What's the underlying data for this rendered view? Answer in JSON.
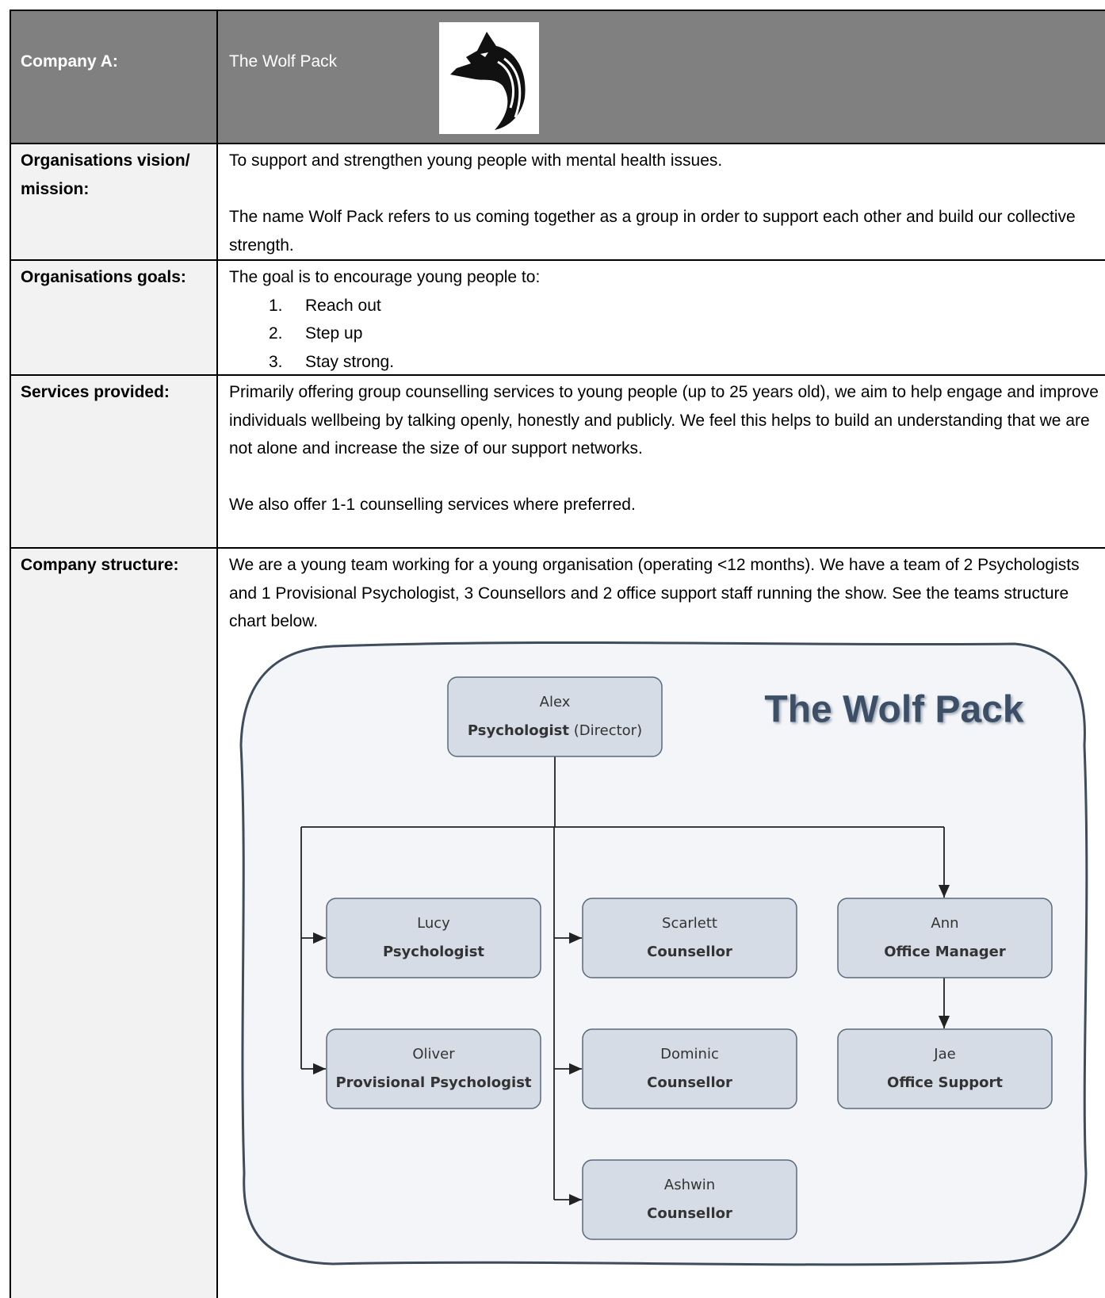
{
  "header": {
    "label": "Company A:",
    "name": "The Wolf Pack"
  },
  "rows": [
    {
      "label": "Organisations vision/ mission:",
      "paragraphs": [
        "To support and strengthen young people with mental health issues.",
        "The name Wolf Pack refers to us coming together as a group in order to support each other and build our collective strength."
      ]
    },
    {
      "label": "Organisations goals:",
      "intro": "The goal is to encourage young people to:",
      "items": [
        {
          "number": "1.",
          "text": "Reach out"
        },
        {
          "number": "2.",
          "text": "Step up"
        },
        {
          "number": "3.",
          "text": "Stay strong."
        }
      ]
    },
    {
      "label": "Services provided:",
      "paragraphs": [
        "Primarily offering group counselling services to young people (up to 25 years old), we aim to help engage and improve individuals wellbeing by talking openly, honestly and publicly. We feel this helps to build an understanding that we are not alone and increase the size of our support networks.",
        "We also offer 1-1 counselling services where preferred."
      ]
    },
    {
      "label": "Company structure:",
      "paragraphs": [
        "We are a young team working for a young organisation (operating <12 months). We have a team of 2 Psychologists and 1 Provisional Psychologist, 3 Counsellors and 2 office support staff running the show. See the teams structure chart below."
      ]
    }
  ],
  "org_chart": {
    "title": "The Wolf Pack",
    "nodes": [
      {
        "name": "Alex",
        "role": "Psychologist",
        "note": "(Director)"
      },
      {
        "name": "Lucy",
        "role": "Psychologist"
      },
      {
        "name": "Oliver",
        "role": "Provisional Psychologist"
      },
      {
        "name": "Scarlett",
        "role": "Counsellor"
      },
      {
        "name": "Dominic",
        "role": "Counsellor"
      },
      {
        "name": "Ashwin",
        "role": "Counsellor"
      },
      {
        "name": "Ann",
        "role": "Office Manager"
      },
      {
        "name": "Jae",
        "role": "Office Support"
      }
    ]
  }
}
